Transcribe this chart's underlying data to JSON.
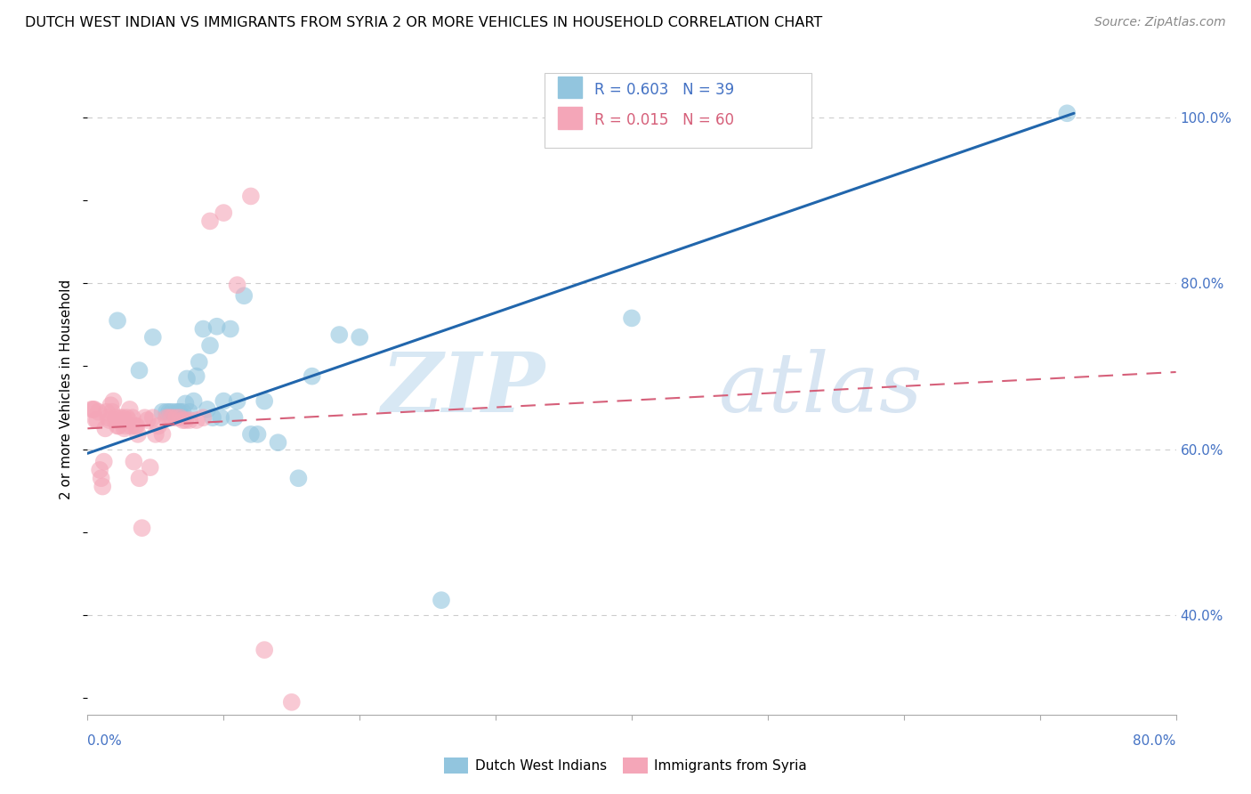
{
  "title": "DUTCH WEST INDIAN VS IMMIGRANTS FROM SYRIA 2 OR MORE VEHICLES IN HOUSEHOLD CORRELATION CHART",
  "source": "Source: ZipAtlas.com",
  "ylabel": "2 or more Vehicles in Household",
  "legend_label_blue": "Dutch West Indians",
  "legend_label_pink": "Immigrants from Syria",
  "blue_color": "#92c5de",
  "pink_color": "#f4a6b8",
  "blue_line_color": "#2166ac",
  "pink_line_color": "#d6607a",
  "watermark_zip": "ZIP",
  "watermark_atlas": "atlas",
  "ytick_labels": [
    "40.0%",
    "60.0%",
    "80.0%",
    "100.0%"
  ],
  "ytick_values": [
    0.4,
    0.6,
    0.8,
    1.0
  ],
  "blue_scatter_x": [
    0.022,
    0.038,
    0.048,
    0.055,
    0.058,
    0.06,
    0.062,
    0.065,
    0.067,
    0.068,
    0.07,
    0.072,
    0.073,
    0.075,
    0.078,
    0.08,
    0.082,
    0.085,
    0.088,
    0.09,
    0.092,
    0.095,
    0.098,
    0.1,
    0.105,
    0.108,
    0.11,
    0.115,
    0.12,
    0.125,
    0.13,
    0.14,
    0.155,
    0.165,
    0.185,
    0.2,
    0.26,
    0.4,
    0.72
  ],
  "blue_scatter_y": [
    0.755,
    0.695,
    0.735,
    0.645,
    0.645,
    0.645,
    0.645,
    0.645,
    0.645,
    0.645,
    0.645,
    0.655,
    0.685,
    0.645,
    0.658,
    0.688,
    0.705,
    0.745,
    0.648,
    0.725,
    0.638,
    0.748,
    0.638,
    0.658,
    0.745,
    0.638,
    0.658,
    0.785,
    0.618,
    0.618,
    0.658,
    0.608,
    0.565,
    0.688,
    0.738,
    0.735,
    0.418,
    0.758,
    1.005
  ],
  "pink_scatter_x": [
    0.003,
    0.004,
    0.005,
    0.006,
    0.007,
    0.008,
    0.009,
    0.01,
    0.011,
    0.012,
    0.013,
    0.014,
    0.015,
    0.016,
    0.017,
    0.018,
    0.019,
    0.02,
    0.021,
    0.022,
    0.023,
    0.024,
    0.025,
    0.026,
    0.027,
    0.028,
    0.029,
    0.03,
    0.031,
    0.032,
    0.033,
    0.034,
    0.035,
    0.036,
    0.037,
    0.038,
    0.04,
    0.042,
    0.044,
    0.046,
    0.048,
    0.05,
    0.052,
    0.055,
    0.058,
    0.06,
    0.062,
    0.065,
    0.068,
    0.07,
    0.072,
    0.075,
    0.08,
    0.085,
    0.09,
    0.1,
    0.11,
    0.12,
    0.13,
    0.15
  ],
  "pink_scatter_y": [
    0.648,
    0.648,
    0.648,
    0.635,
    0.635,
    0.645,
    0.575,
    0.565,
    0.555,
    0.585,
    0.625,
    0.645,
    0.638,
    0.635,
    0.653,
    0.645,
    0.658,
    0.635,
    0.638,
    0.628,
    0.628,
    0.638,
    0.635,
    0.638,
    0.625,
    0.628,
    0.638,
    0.635,
    0.648,
    0.628,
    0.638,
    0.585,
    0.628,
    0.628,
    0.618,
    0.565,
    0.505,
    0.638,
    0.635,
    0.578,
    0.638,
    0.618,
    0.628,
    0.618,
    0.638,
    0.638,
    0.638,
    0.638,
    0.638,
    0.635,
    0.635,
    0.635,
    0.635,
    0.638,
    0.875,
    0.885,
    0.798,
    0.905,
    0.358,
    0.295
  ],
  "blue_line_x": [
    0.0,
    0.725
  ],
  "blue_line_y": [
    0.595,
    1.005
  ],
  "pink_line_x": [
    0.0,
    0.8
  ],
  "pink_line_y": [
    0.625,
    0.693
  ],
  "xlim": [
    0.0,
    0.8
  ],
  "ylim": [
    0.28,
    1.065
  ]
}
